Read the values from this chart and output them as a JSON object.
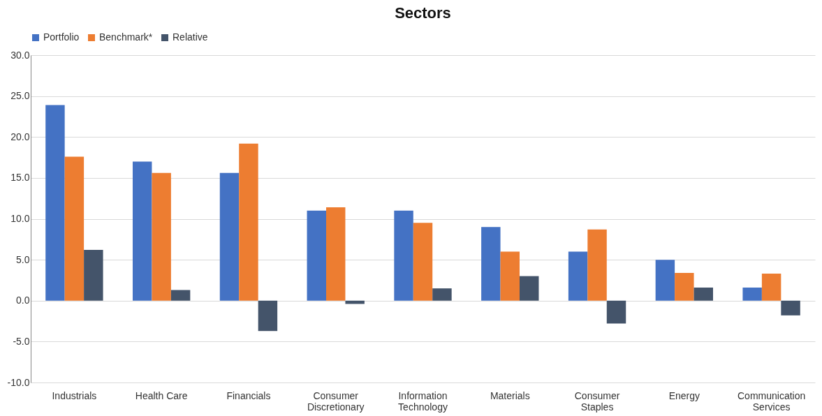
{
  "chart_data": {
    "type": "bar",
    "title": "Sectors",
    "categories": [
      "Industrials",
      "Health Care",
      "Financials",
      "Consumer Discretionary",
      "Information Technology",
      "Materials",
      "Consumer Staples",
      "Energy",
      "Communication Services"
    ],
    "series": [
      {
        "name": "Portfolio",
        "color": "#4472c4",
        "values": [
          23.9,
          17.0,
          15.6,
          11.0,
          11.0,
          9.0,
          6.0,
          5.0,
          1.6
        ]
      },
      {
        "name": "Benchmark*",
        "color": "#ed7d31",
        "values": [
          17.6,
          15.6,
          19.2,
          11.4,
          9.5,
          6.0,
          8.7,
          3.4,
          3.3
        ]
      },
      {
        "name": "Relative",
        "color": "#44546a",
        "values": [
          6.2,
          1.3,
          -3.7,
          -0.4,
          1.5,
          3.0,
          -2.8,
          1.6,
          -1.8
        ]
      }
    ],
    "ylim": [
      -10,
      30
    ],
    "yticks": [
      {
        "value": -10,
        "label": "-10.0"
      },
      {
        "value": -5,
        "label": "-5.0"
      },
      {
        "value": 0,
        "label": "0.0"
      },
      {
        "value": 5,
        "label": "5.0"
      },
      {
        "value": 10,
        "label": "10.0"
      },
      {
        "value": 15,
        "label": "15.0"
      },
      {
        "value": 20,
        "label": "20.0"
      },
      {
        "value": 25,
        "label": "25.0"
      },
      {
        "value": 30,
        "label": "30.0"
      }
    ],
    "grid": "y",
    "legend": "top"
  }
}
